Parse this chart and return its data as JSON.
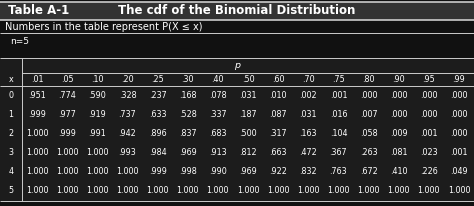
{
  "title_left": "Table A-1",
  "title_right": "The cdf of the Binomial Distribution",
  "subtitle": "Numbers in the table represent P(X ≤ x)",
  "n_label": "n=5",
  "p_label": "p",
  "col_headers": [
    ".01",
    ".05",
    ".10",
    ".20",
    ".25",
    ".30",
    ".40",
    ".50",
    ".60",
    ".70",
    ".75",
    ".80",
    ".90",
    ".95",
    ".99"
  ],
  "row_labels": [
    "0",
    "1",
    "2",
    "3",
    "4",
    "5"
  ],
  "x_label": "x",
  "data": [
    [
      ".951",
      ".774",
      ".590",
      ".328",
      ".237",
      ".168",
      ".078",
      ".031",
      ".010",
      ".002",
      ".001",
      ".000",
      ".000",
      ".000",
      ".000"
    ],
    [
      ".999",
      ".977",
      ".919",
      ".737",
      ".633",
      ".528",
      ".337",
      ".187",
      ".087",
      ".031",
      ".016",
      ".007",
      ".000",
      ".000",
      ".000"
    ],
    [
      "1.000",
      ".999",
      ".991",
      ".942",
      ".896",
      ".837",
      ".683",
      ".500",
      ".317",
      ".163",
      ".104",
      ".058",
      ".009",
      ".001",
      ".000"
    ],
    [
      "1.000",
      "1.000",
      "1.000",
      ".993",
      ".984",
      ".969",
      ".913",
      ".812",
      ".663",
      ".472",
      ".367",
      ".263",
      ".081",
      ".023",
      ".001"
    ],
    [
      "1.000",
      "1.000",
      "1.000",
      "1.000",
      ".999",
      ".998",
      ".990",
      ".969",
      ".922",
      ".832",
      ".763",
      ".672",
      ".410",
      ".226",
      ".049"
    ],
    [
      "1.000",
      "1.000",
      "1.000",
      "1.000",
      "1.000",
      "1.000",
      "1.000",
      "1.000",
      "1.000",
      "1.000",
      "1.000",
      "1.000",
      "1.000",
      "1.000",
      "1.000"
    ]
  ],
  "bg_color": "#111111",
  "text_color": "#ffffff",
  "header_bg": "#333333",
  "table_bg": "#1c1c1c",
  "line_color": "#cccccc",
  "font_size_title": 8.5,
  "font_size_subtitle": 7.0,
  "font_size_n": 6.5,
  "font_size_table": 5.8,
  "fig_width": 4.74,
  "fig_height": 2.06,
  "dpi": 100
}
